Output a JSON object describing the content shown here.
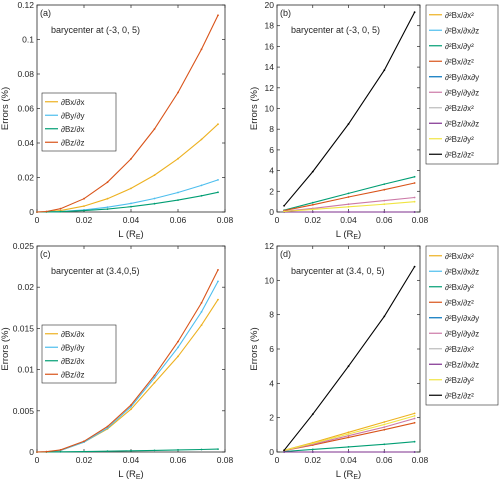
{
  "chart_data": [
    {
      "panel": "(a)",
      "type": "line",
      "annotation": "barycenter at (-3, 0, 5)",
      "xlabel": "L (R",
      "xlabel_sub": "E",
      "xlabel_tail": ")",
      "ylabel": "Errors (%)",
      "xlim": [
        0,
        0.08
      ],
      "ylim": [
        0,
        0.12
      ],
      "xticks": [
        "0",
        "0.02",
        "0.04",
        "0.06",
        "0.08"
      ],
      "yticks": [
        "0",
        "0.02",
        "0.04",
        "0.06",
        "0.08",
        "0.1",
        "0.12"
      ],
      "x": [
        0,
        0.004,
        0.01,
        0.02,
        0.03,
        0.04,
        0.05,
        0.06,
        0.07,
        0.077
      ],
      "legend_position": "center-left",
      "series": [
        {
          "name": "∂Bx/∂x",
          "color": "#EDB120",
          "values": [
            0,
            0.00013,
            0.0008,
            0.0034,
            0.0077,
            0.0137,
            0.0214,
            0.0309,
            0.0421,
            0.0509
          ]
        },
        {
          "name": "∂By/∂y",
          "color": "#4DBEEE",
          "values": [
            0,
            5e-05,
            0.0003,
            0.0012,
            0.0028,
            0.005,
            0.0078,
            0.0113,
            0.0154,
            0.0186
          ]
        },
        {
          "name": "∂Bz/∂x",
          "color": "#009E73",
          "values": [
            0,
            4e-05,
            0.0002,
            0.0008,
            0.0017,
            0.0031,
            0.0048,
            0.0069,
            0.0094,
            0.0114
          ]
        },
        {
          "name": "∂Bz/∂z",
          "color": "#D95319",
          "values": [
            0,
            0.00031,
            0.0019,
            0.0077,
            0.0173,
            0.0308,
            0.0481,
            0.0693,
            0.0943,
            0.114
          ]
        }
      ]
    },
    {
      "panel": "(b)",
      "type": "line",
      "annotation": "barycenter at (-3, 0, 5)",
      "xlabel": "L (R",
      "xlabel_sub": "E",
      "xlabel_tail": ")",
      "ylabel": "Errors (%)",
      "xlim": [
        0,
        0.08
      ],
      "ylim": [
        0,
        20
      ],
      "xticks": [
        "0",
        "0.02",
        "0.04",
        "0.06",
        "0.08"
      ],
      "yticks": [
        "0",
        "2",
        "4",
        "6",
        "8",
        "10",
        "12",
        "14",
        "16",
        "18",
        "20"
      ],
      "x": [
        0.004,
        0.02,
        0.04,
        0.06,
        0.077
      ],
      "legend_position": "outside-right",
      "series": [
        {
          "name": "∂²Bx/∂x²",
          "color": "#EDB120",
          "values": [
            0,
            0,
            0,
            0,
            0
          ]
        },
        {
          "name": "∂²Bx/∂x∂z",
          "color": "#4DBEEE",
          "values": [
            0,
            0,
            0,
            0,
            0
          ]
        },
        {
          "name": "∂²Bx/∂y²",
          "color": "#009E73",
          "values": [
            0.18,
            0.9,
            1.8,
            2.7,
            3.4
          ]
        },
        {
          "name": "∂²Bx/∂z²",
          "color": "#D95319",
          "values": [
            0.14,
            0.7,
            1.45,
            2.15,
            2.8
          ]
        },
        {
          "name": "∂²By/∂x∂y",
          "color": "#0072BD",
          "values": [
            0,
            0,
            0,
            0,
            0
          ]
        },
        {
          "name": "∂²By/∂y∂z",
          "color": "#CC79A7",
          "values": [
            0.07,
            0.35,
            0.75,
            1.1,
            1.4
          ]
        },
        {
          "name": "∂²Bz/∂x²",
          "color": "#BBBBBB",
          "values": [
            0,
            0,
            0,
            0,
            0
          ]
        },
        {
          "name": "∂²Bz/∂x∂z",
          "color": "#7E2F8E",
          "values": [
            0,
            0,
            0,
            0,
            0
          ]
        },
        {
          "name": "∂²Bz/∂y²",
          "color": "#F0E442",
          "values": [
            0.05,
            0.25,
            0.5,
            0.75,
            1.0
          ]
        },
        {
          "name": "∂²Bz/∂z²",
          "color": "#000000",
          "values": [
            0.6,
            3.9,
            8.5,
            13.7,
            19.3
          ]
        }
      ]
    },
    {
      "panel": "(c)",
      "type": "line",
      "annotation": "barycenter at (3.4,0,5)",
      "xlabel": "L (R",
      "xlabel_sub": "E",
      "xlabel_tail": ")",
      "ylabel": "Errors (%)",
      "xlim": [
        0,
        0.08
      ],
      "ylim": [
        0,
        0.025
      ],
      "xticks": [
        "0",
        "0.02",
        "0.04",
        "0.06",
        "0.08"
      ],
      "yticks": [
        "0",
        "0.005",
        "0.01",
        "0.015",
        "0.02",
        "0.025"
      ],
      "x": [
        0,
        0.004,
        0.01,
        0.02,
        0.03,
        0.04,
        0.05,
        0.06,
        0.07,
        0.077
      ],
      "legend_position": "center-left",
      "series": [
        {
          "name": "∂Bx/∂x",
          "color": "#EDB120",
          "values": [
            0,
            3e-05,
            0.0002,
            0.0012,
            0.0028,
            0.0052,
            0.0084,
            0.0116,
            0.0154,
            0.0185
          ]
        },
        {
          "name": "∂By/∂y",
          "color": "#4DBEEE",
          "values": [
            0,
            3e-05,
            0.0002,
            0.0012,
            0.0029,
            0.0055,
            0.009,
            0.0127,
            0.017,
            0.0207
          ]
        },
        {
          "name": "∂Bz/∂x",
          "color": "#009E73",
          "values": [
            0,
            5e-06,
            2e-05,
            5e-05,
            0.0001,
            0.00015,
            0.0002,
            0.00025,
            0.0003,
            0.00035
          ]
        },
        {
          "name": "∂Bz/∂z",
          "color": "#D95319",
          "values": [
            0,
            4e-05,
            0.00025,
            0.0013,
            0.0031,
            0.0057,
            0.0093,
            0.0134,
            0.0181,
            0.0221
          ]
        }
      ]
    },
    {
      "panel": "(d)",
      "type": "line",
      "annotation": "barycenter at (3.4, 0, 5)",
      "xlabel": "L (R",
      "xlabel_sub": "E",
      "xlabel_tail": ")",
      "ylabel": "Errors (%)",
      "xlim": [
        0,
        0.08
      ],
      "ylim": [
        0,
        12
      ],
      "xticks": [
        "0",
        "0.02",
        "0.04",
        "0.06",
        "0.08"
      ],
      "yticks": [
        "0",
        "2",
        "4",
        "6",
        "8",
        "10",
        "12"
      ],
      "x": [
        0.004,
        0.02,
        0.04,
        0.06,
        0.077
      ],
      "legend_position": "outside-right",
      "series": [
        {
          "name": "∂²Bx/∂x²",
          "color": "#EDB120",
          "values": [
            0.1,
            0.55,
            1.15,
            1.75,
            2.25
          ]
        },
        {
          "name": "∂²Bx/∂x∂z",
          "color": "#4DBEEE",
          "values": [
            0,
            0,
            0,
            0,
            0
          ]
        },
        {
          "name": "∂²Bx/∂y²",
          "color": "#009E73",
          "values": [
            0.03,
            0.15,
            0.3,
            0.45,
            0.6
          ]
        },
        {
          "name": "∂²Bx/∂z²",
          "color": "#D95319",
          "values": [
            0.08,
            0.4,
            0.85,
            1.3,
            1.7
          ]
        },
        {
          "name": "∂²By/∂x∂y",
          "color": "#0072BD",
          "values": [
            0,
            0,
            0,
            0,
            0
          ]
        },
        {
          "name": "∂²By/∂y∂z",
          "color": "#CC79A7",
          "values": [
            0.09,
            0.45,
            0.95,
            1.45,
            1.95
          ]
        },
        {
          "name": "∂²Bz/∂x²",
          "color": "#BBBBBB",
          "values": [
            0,
            0,
            0,
            0,
            0
          ]
        },
        {
          "name": "∂²Bz/∂x∂z",
          "color": "#7E2F8E",
          "values": [
            0,
            0,
            0,
            0,
            0
          ]
        },
        {
          "name": "∂²Bz/∂y²",
          "color": "#F0E442",
          "values": [
            0.1,
            0.5,
            1.05,
            1.6,
            2.1
          ]
        },
        {
          "name": "∂²Bz/∂z²",
          "color": "#000000",
          "values": [
            0.1,
            2.2,
            5.0,
            7.9,
            10.8
          ]
        }
      ]
    }
  ]
}
